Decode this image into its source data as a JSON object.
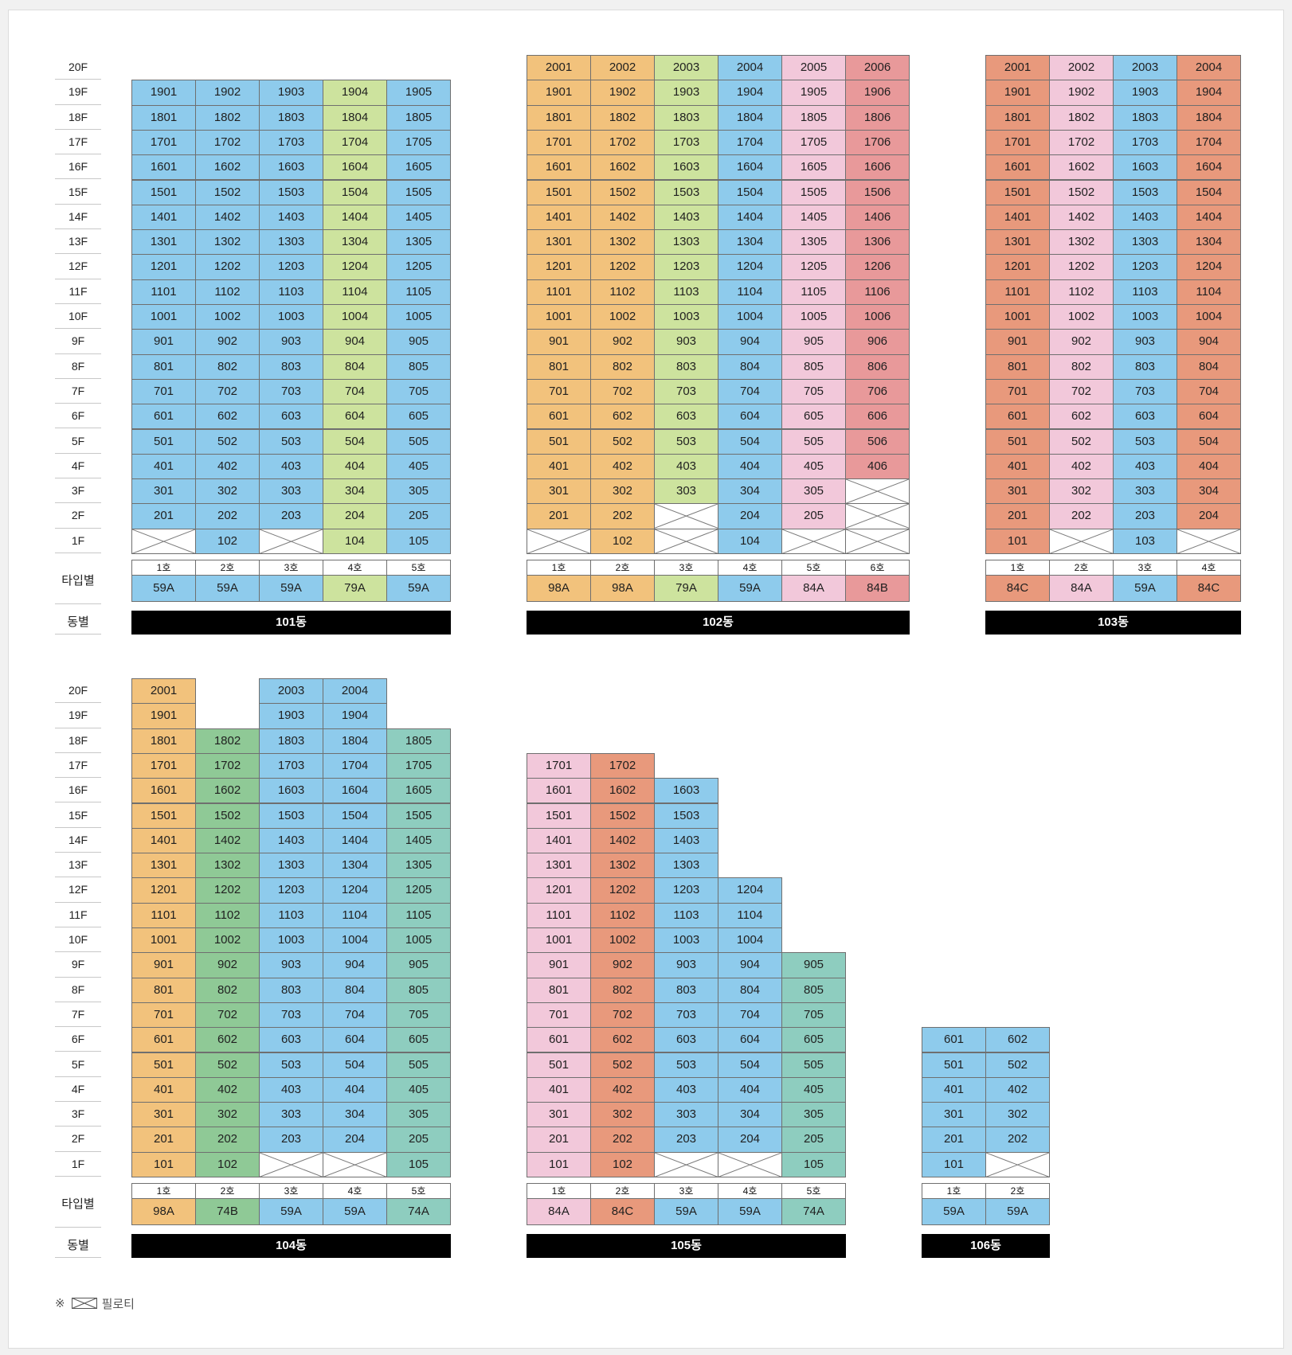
{
  "colors": {
    "59A": "#8ecbec",
    "79A": "#cde39e",
    "98A": "#f2c27c",
    "84A": "#f2c8da",
    "84B": "#e8999a",
    "84C": "#e8997c",
    "74B": "#8fc996",
    "74A": "#8ecdbf"
  },
  "labels": {
    "type_row": "타입별",
    "dong_row": "동별",
    "legend_mark": "※",
    "legend_text": "필로티",
    "legend_icon": "piloti-cross-box-icon"
  },
  "groups": [
    {
      "floor_labels": [
        "20F",
        "19F",
        "18F",
        "17F",
        "16F",
        "15F",
        "14F",
        "13F",
        "12F",
        "11F",
        "10F",
        "9F",
        "8F",
        "7F",
        "6F",
        "5F",
        "4F",
        "3F",
        "2F",
        "1F"
      ],
      "buildings": [
        {
          "name": "101동",
          "lines": [
            {
              "ho": "1호",
              "type": "59A",
              "top": 19,
              "piloti": [
                1
              ]
            },
            {
              "ho": "2호",
              "type": "59A",
              "top": 19,
              "piloti": []
            },
            {
              "ho": "3호",
              "type": "59A",
              "top": 19,
              "piloti": [
                1
              ]
            },
            {
              "ho": "4호",
              "type": "79A",
              "top": 19,
              "piloti": []
            },
            {
              "ho": "5호",
              "type": "59A",
              "top": 19,
              "piloti": []
            }
          ]
        },
        {
          "name": "102동",
          "lines": [
            {
              "ho": "1호",
              "type": "98A",
              "top": 20,
              "piloti": [
                1
              ]
            },
            {
              "ho": "2호",
              "type": "98A",
              "top": 20,
              "piloti": []
            },
            {
              "ho": "3호",
              "type": "79A",
              "top": 20,
              "piloti": [
                1,
                2
              ]
            },
            {
              "ho": "4호",
              "type": "59A",
              "top": 20,
              "piloti": []
            },
            {
              "ho": "5호",
              "type": "84A",
              "top": 20,
              "piloti": [
                1
              ]
            },
            {
              "ho": "6호",
              "type": "84B",
              "top": 20,
              "piloti": [
                1,
                2,
                3
              ]
            }
          ]
        },
        {
          "name": "103동",
          "lines": [
            {
              "ho": "1호",
              "type": "84C",
              "top": 20,
              "piloti": []
            },
            {
              "ho": "2호",
              "type": "84A",
              "top": 20,
              "piloti": [
                1
              ]
            },
            {
              "ho": "3호",
              "type": "59A",
              "top": 20,
              "piloti": []
            },
            {
              "ho": "4호",
              "type": "84C",
              "top": 20,
              "piloti": [
                1
              ]
            }
          ]
        }
      ]
    },
    {
      "floor_labels": [
        "20F",
        "19F",
        "18F",
        "17F",
        "16F",
        "15F",
        "14F",
        "13F",
        "12F",
        "11F",
        "10F",
        "9F",
        "8F",
        "7F",
        "6F",
        "5F",
        "4F",
        "3F",
        "2F",
        "1F"
      ],
      "buildings": [
        {
          "name": "104동",
          "lines": [
            {
              "ho": "1호",
              "type": "98A",
              "top": 20,
              "piloti": []
            },
            {
              "ho": "2호",
              "type": "74B",
              "top": 18,
              "piloti": []
            },
            {
              "ho": "3호",
              "type": "59A",
              "top": 20,
              "piloti": [
                1
              ]
            },
            {
              "ho": "4호",
              "type": "59A",
              "top": 20,
              "piloti": [
                1
              ]
            },
            {
              "ho": "5호",
              "type": "74A",
              "top": 18,
              "piloti": []
            }
          ]
        },
        {
          "name": "105동",
          "lines": [
            {
              "ho": "1호",
              "type": "84A",
              "top": 17,
              "piloti": []
            },
            {
              "ho": "2호",
              "type": "84C",
              "top": 17,
              "piloti": []
            },
            {
              "ho": "3호",
              "type": "59A",
              "top": 16,
              "piloti": [
                1
              ]
            },
            {
              "ho": "4호",
              "type": "59A",
              "top": 12,
              "piloti": [
                1
              ]
            },
            {
              "ho": "5호",
              "type": "74A",
              "top": 9,
              "piloti": []
            }
          ]
        },
        {
          "name": "106동",
          "lines": [
            {
              "ho": "1호",
              "type": "59A",
              "top": 6,
              "piloti": []
            },
            {
              "ho": "2호",
              "type": "59A",
              "top": 6,
              "piloti": [
                1
              ]
            }
          ]
        }
      ]
    }
  ]
}
